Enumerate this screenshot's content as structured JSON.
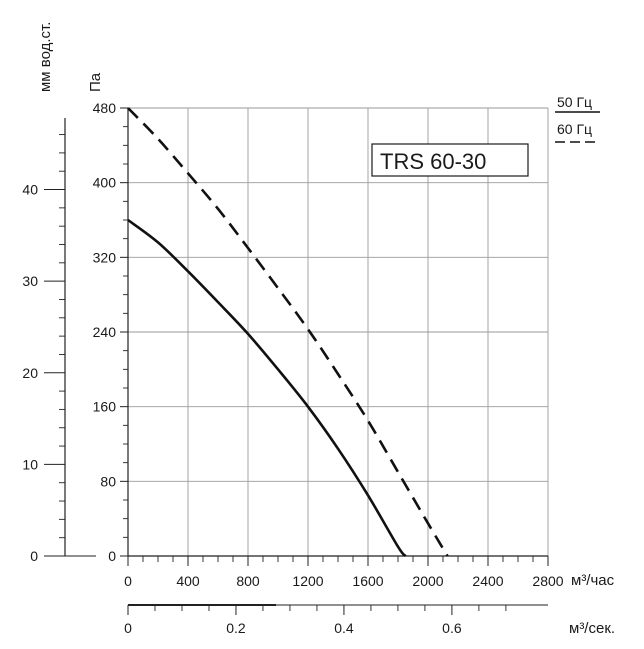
{
  "chart_data": {
    "type": "line",
    "title": "TRS 60-30",
    "x": [
      0,
      200,
      400,
      600,
      800,
      1000,
      1200,
      1400,
      1600,
      1800,
      1850,
      2000,
      2100,
      2130
    ],
    "xlabel": "м³/час",
    "ylabel": "Па",
    "ylabel_secondary": "мм вод.ст.",
    "x2label": "м³/сек.",
    "xlim": [
      0,
      2800
    ],
    "ylim": [
      0,
      480
    ],
    "y2lim": [
      0,
      48.9
    ],
    "x2lim": [
      0,
      0.778
    ],
    "xticks": [
      "0",
      "400",
      "800",
      "1200",
      "1600",
      "2000",
      "2400",
      "2800"
    ],
    "yticks": [
      "0",
      "80",
      "160",
      "240",
      "320",
      "400",
      "480"
    ],
    "y2ticks": [
      "0",
      "10",
      "20",
      "30",
      "40"
    ],
    "x2ticks": [
      "0",
      "0.2",
      "0.4",
      "0.6"
    ],
    "grid": true,
    "legend": "top-right",
    "series": [
      {
        "name": "50 Гц",
        "style": "solid",
        "color": "#111111",
        "points": [
          [
            0,
            360
          ],
          [
            200,
            336
          ],
          [
            400,
            305
          ],
          [
            600,
            272
          ],
          [
            800,
            238
          ],
          [
            1000,
            200
          ],
          [
            1200,
            160
          ],
          [
            1400,
            115
          ],
          [
            1600,
            65
          ],
          [
            1800,
            10
          ],
          [
            1850,
            0
          ]
        ]
      },
      {
        "name": "60 Гц",
        "style": "dashed",
        "color": "#111111",
        "points": [
          [
            0,
            480
          ],
          [
            200,
            447
          ],
          [
            400,
            410
          ],
          [
            600,
            372
          ],
          [
            800,
            330
          ],
          [
            1000,
            287
          ],
          [
            1200,
            243
          ],
          [
            1400,
            195
          ],
          [
            1600,
            145
          ],
          [
            1800,
            90
          ],
          [
            2000,
            35
          ],
          [
            2130,
            0
          ]
        ]
      }
    ]
  }
}
